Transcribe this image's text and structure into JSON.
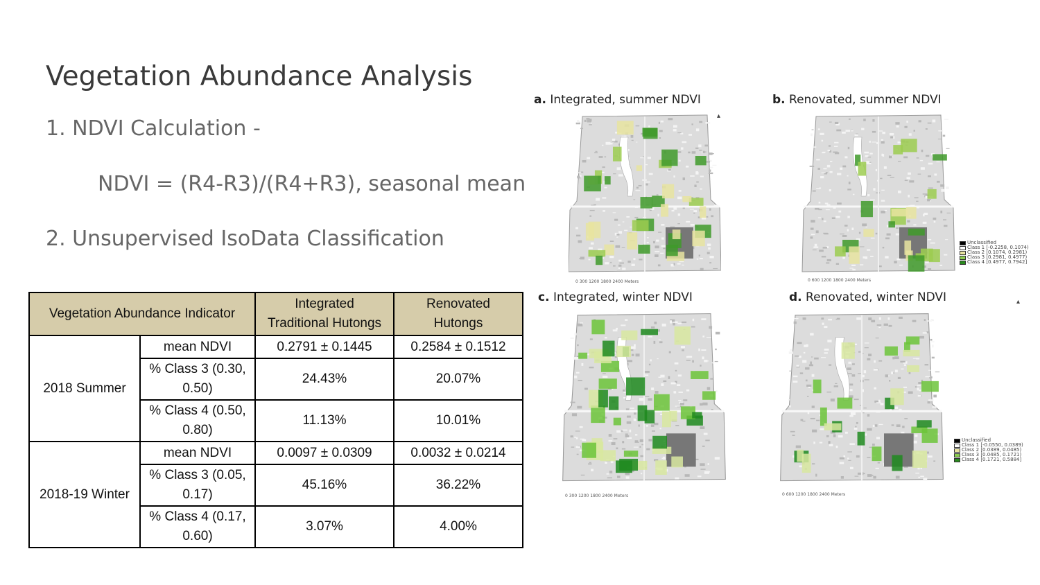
{
  "slide": {
    "title": "Vegetation Abundance Analysis",
    "bullet1": "1. NDVI Calculation -",
    "formula": "NDVI = (R4-R3)/(R4+R3), seasonal mean",
    "bullet2": "2. Unsupervised IsoData Classification"
  },
  "table": {
    "header": {
      "indicator": "Vegetation Abundance Indicator",
      "integrated_line1": "Integrated",
      "integrated_line2": "Traditional Hutongs",
      "renovated_line1": "Renovated",
      "renovated_line2": "Hutongs"
    },
    "groups": [
      {
        "season": "2018 Summer",
        "rows": [
          {
            "metric": "mean NDVI",
            "integrated": "0.2791 ± 0.1445",
            "renovated": "0.2584 ± 0.1512"
          },
          {
            "metric": "% Class 3 (0.30, 0.50)",
            "integrated": "24.43%",
            "renovated": "20.07%"
          },
          {
            "metric": "% Class 4 (0.50, 0.80)",
            "integrated": "11.13%",
            "renovated": "10.01%"
          }
        ]
      },
      {
        "season": "2018-19 Winter",
        "rows": [
          {
            "metric": "mean NDVI",
            "integrated": "0.0097 ± 0.0309",
            "renovated": "0.0032 ± 0.0214"
          },
          {
            "metric": "% Class 3 (0.05, 0.17)",
            "integrated": "45.16%",
            "renovated": "36.22%"
          },
          {
            "metric": "% Class 4 (0.17, 0.60)",
            "integrated": "3.07%",
            "renovated": "4.00%"
          }
        ]
      }
    ]
  },
  "maps": [
    {
      "letter": "a.",
      "caption": "Integrated, summer NDVI",
      "palette": [
        "#e8e4a0",
        "#9ccc50",
        "#3f9a2a"
      ]
    },
    {
      "letter": "b.",
      "caption": "Renovated, summer NDVI",
      "palette": [
        "#e8e4a0",
        "#9ccc50",
        "#3f9a2a"
      ]
    },
    {
      "letter": "c.",
      "caption": "Integrated, winter NDVI",
      "palette": [
        "#d8e8a0",
        "#6cc43a",
        "#1e8a1e"
      ]
    },
    {
      "letter": "d.",
      "caption": "Renovated, winter NDVI",
      "palette": [
        "#d8e8a0",
        "#6cc43a",
        "#1e8a1e"
      ]
    }
  ],
  "legend_summer": [
    "Unclassified",
    "Class 1 [-0.2258, 0.1074)",
    "Class 2 [0.1074, 0.2981)",
    "Class 3 [0.2981, 0.4977)",
    "Class 4 [0.4977, 0.7942]"
  ],
  "legend_winter": [
    "Unclassified",
    "Class 1 [-0.0550, 0.0389)",
    "Class 2 [0.0389, 0.0485)",
    "Class 3 [0.0485, 0.1721)",
    "Class 4 [0.1721, 0.5884]"
  ],
  "legend_colors": [
    "#000000",
    "#ffffff",
    "#e8e4a0",
    "#8ccc50",
    "#2a8a1e"
  ],
  "scale_a": "0  300  1200  1800  2400",
  "scale_b": "0  600  1200  1800  2400",
  "scale_units": "Meters"
}
